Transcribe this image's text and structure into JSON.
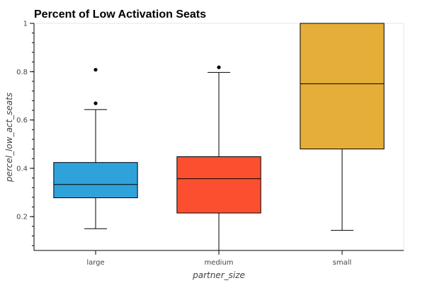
{
  "chart_data": {
    "type": "box",
    "title": "Percent of Low Activation Seats",
    "xlabel": "partner_size",
    "ylabel": "percel_low_act_seats",
    "ylim": [
      0.06,
      1.0
    ],
    "yticks": [
      {
        "value": 0.2,
        "label": "0.2"
      },
      {
        "value": 0.4,
        "label": "0.4"
      },
      {
        "value": 0.6,
        "label": "0.6"
      },
      {
        "value": 0.8,
        "label": "0.8"
      },
      {
        "value": 1.0,
        "label": "1"
      }
    ],
    "yminor_step": 0.04,
    "grid": false,
    "categories": [
      "large",
      "medium",
      "small"
    ],
    "boxes": [
      {
        "category": "large",
        "color": "#30a2da",
        "whisker_low": 0.15,
        "q1": 0.278,
        "median": 0.333,
        "q3": 0.424,
        "whisker_high": 0.643,
        "outliers": [
          0.808,
          0.669
        ]
      },
      {
        "category": "medium",
        "color": "#fc4f30",
        "whisker_low": 0.06,
        "q1": 0.215,
        "median": 0.357,
        "q3": 0.448,
        "whisker_high": 0.797,
        "outliers": [
          0.818
        ]
      },
      {
        "category": "small",
        "color": "#e5ae38",
        "whisker_low": 0.143,
        "q1": 0.48,
        "median": 0.75,
        "q3": 1.0,
        "whisker_high": 1.0,
        "outliers": []
      }
    ]
  }
}
